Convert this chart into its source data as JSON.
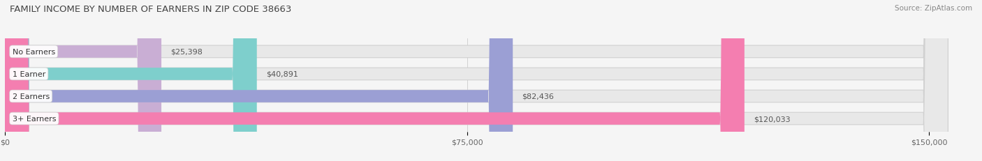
{
  "title": "FAMILY INCOME BY NUMBER OF EARNERS IN ZIP CODE 38663",
  "source": "Source: ZipAtlas.com",
  "categories": [
    "No Earners",
    "1 Earner",
    "2 Earners",
    "3+ Earners"
  ],
  "values": [
    25398,
    40891,
    82436,
    120033
  ],
  "bar_colors": [
    "#c9aed4",
    "#7ecfcc",
    "#9b9fd4",
    "#f47eb0"
  ],
  "value_labels": [
    "$25,398",
    "$40,891",
    "$82,436",
    "$120,033"
  ],
  "x_ticks": [
    0,
    75000,
    150000
  ],
  "x_tick_labels": [
    "$0",
    "$75,000",
    "$150,000"
  ],
  "xlim_max": 157000,
  "bg_color": "#f5f5f5",
  "bar_bg_color": "#e8e8e8",
  "bar_height": 0.55,
  "title_fontsize": 9.5,
  "label_fontsize": 8.0,
  "value_fontsize": 8.0,
  "tick_fontsize": 8.0,
  "source_fontsize": 7.5
}
